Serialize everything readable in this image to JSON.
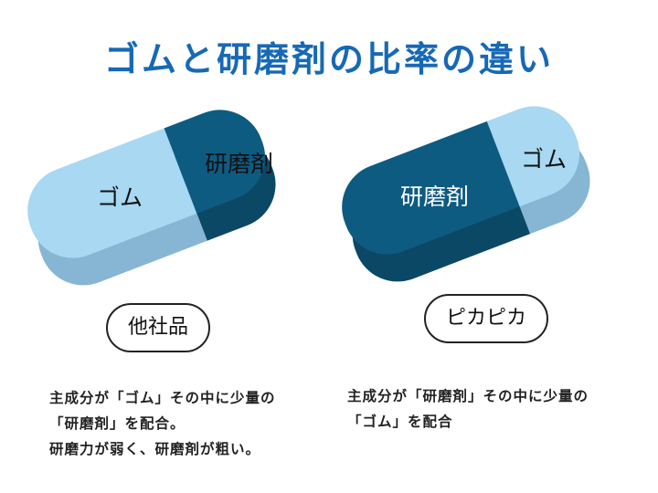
{
  "title": "ゴムと研磨剤の比率の違い",
  "colors": {
    "title": "#1769b5",
    "gum_top": "#a8d8f2",
    "gum_side": "#86b6d4",
    "abrasive_top": "#0e5b82",
    "abrasive_side": "#0a4866"
  },
  "left": {
    "gum_label": "ゴム",
    "abrasive_label": "研磨剤",
    "badge": "他社品",
    "desc": [
      "主成分が「ゴム」その中に少量の",
      "「研磨剤」を配合。",
      "研磨力が弱く、研磨剤が粗い。"
    ]
  },
  "right": {
    "gum_label": "ゴム",
    "abrasive_label": "研磨剤",
    "badge": "ピカピカ",
    "desc": [
      "主成分が「研磨剤」その中に少量の",
      "「ゴム」を配合"
    ]
  }
}
